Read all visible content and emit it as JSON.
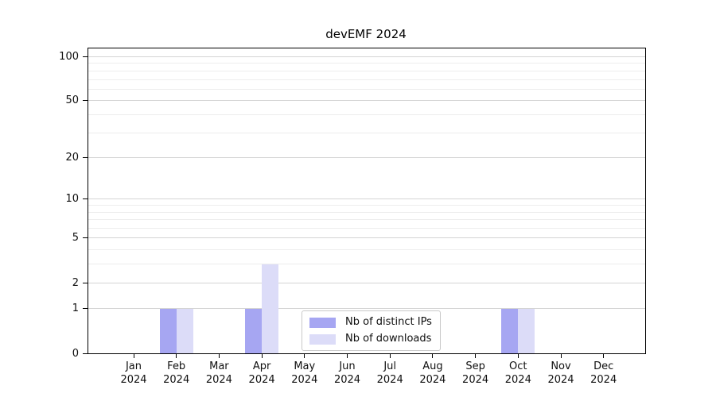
{
  "chart_data": {
    "type": "bar",
    "title": "devEMF 2024",
    "categories": [
      "Jan",
      "Feb",
      "Mar",
      "Apr",
      "May",
      "Jun",
      "Jul",
      "Aug",
      "Sep",
      "Oct",
      "Nov",
      "Dec"
    ],
    "year_label": "2024",
    "series": [
      {
        "name": "Nb of distinct IPs",
        "color": "#a6a6f2",
        "values": [
          0,
          1,
          0,
          1,
          0,
          0,
          0,
          0,
          0,
          1,
          0,
          0
        ]
      },
      {
        "name": "Nb of downloads",
        "color": "#dcdcf8",
        "values": [
          0,
          1,
          0,
          3,
          0,
          0,
          0,
          0,
          0,
          1,
          0,
          0
        ]
      }
    ],
    "yscale": "log1p",
    "ylim": [
      0,
      114
    ],
    "yticks": [
      0,
      1,
      2,
      5,
      10,
      20,
      50,
      100
    ],
    "minor_gridlines": [
      3,
      4,
      6,
      7,
      8,
      9,
      30,
      40,
      60,
      70,
      80,
      90
    ],
    "grid": "on",
    "legend_position": "inside-bottom-center",
    "colors": {
      "axis": "#000000",
      "text": "#0f0f0f",
      "major_grid": "#d4d4d4",
      "minor_grid": "#ededed",
      "legend_border": "#c9c9c9",
      "background": "#ffffff"
    }
  }
}
